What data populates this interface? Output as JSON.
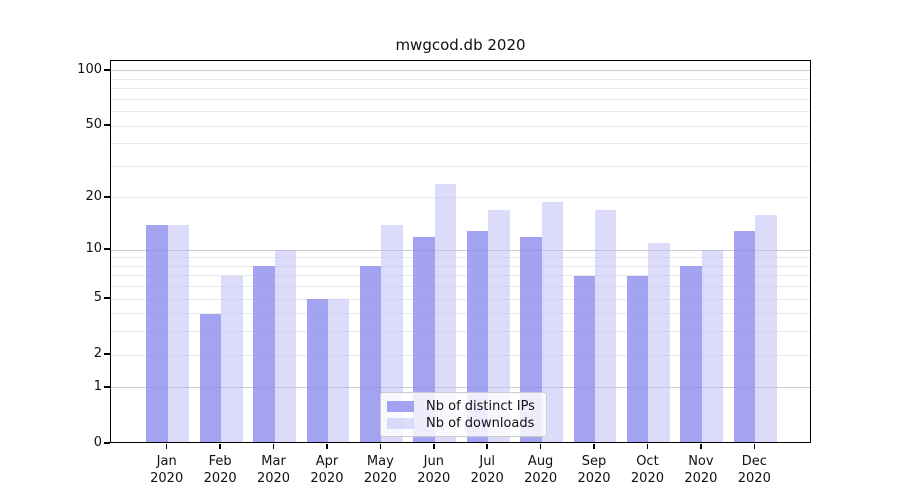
{
  "chart_data": {
    "type": "bar",
    "title": "mwgcod.db 2020",
    "xlabel": "",
    "ylabel": "",
    "yscale": "log1p",
    "ylim": [
      0,
      113
    ],
    "grid": true,
    "legend_position": "lower center",
    "x_tick_months": [
      "Jan",
      "Feb",
      "Mar",
      "Apr",
      "May",
      "Jun",
      "Jul",
      "Aug",
      "Sep",
      "Oct",
      "Nov",
      "Dec"
    ],
    "x_tick_year": "2020",
    "y_ticks": [
      0,
      1,
      2,
      5,
      10,
      20,
      50,
      100
    ],
    "y_gridlines_major": [
      1,
      10,
      100
    ],
    "y_gridlines_minor": [
      2,
      3,
      4,
      5,
      6,
      7,
      8,
      9,
      20,
      30,
      40,
      50,
      60,
      70,
      80,
      90
    ],
    "series": [
      {
        "name": "Nb of distinct IPs",
        "color": "#8c8cee",
        "alpha": 0.8,
        "values": [
          14,
          4,
          8,
          5,
          8,
          12,
          13,
          12,
          7,
          7,
          8,
          13
        ]
      },
      {
        "name": "Nb of downloads",
        "color": "#b9b9f5",
        "alpha": 0.5,
        "values": [
          14,
          7,
          10,
          5,
          14,
          24,
          17,
          19,
          17,
          11,
          10,
          16
        ]
      }
    ],
    "colors": {
      "axis": "#000000",
      "grid_major": "#cccccc",
      "grid_minor": "#eaeaea",
      "text": "#111111",
      "legend_border": "#cccccc",
      "legend_bg": "rgba(255,255,255,0.8)"
    }
  }
}
